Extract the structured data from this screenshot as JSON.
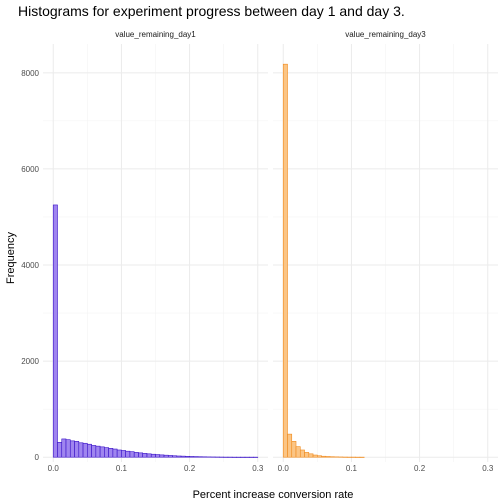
{
  "chart_data": {
    "type": "bar",
    "title": "Histograms for experiment progress between day 1 and day 3.",
    "xlabel": "Percent increase conversion rate",
    "ylabel": "Frequency",
    "xlim": [
      -0.015,
      0.315
    ],
    "ylim": [
      -100,
      8600
    ],
    "x_ticks": [
      0.0,
      0.1,
      0.2,
      0.3
    ],
    "x_tick_labels": [
      "0.0",
      "0.1",
      "0.2",
      "0.3"
    ],
    "y_ticks": [
      0,
      2000,
      4000,
      6000,
      8000
    ],
    "y_tick_labels": [
      "0",
      "2000",
      "4000",
      "6000",
      "8000"
    ],
    "bin_width": 0.00625,
    "grid": true,
    "panels": [
      {
        "name": "value_remaining_day1",
        "fill": "#9f85ef",
        "stroke": "#3a12c8",
        "bin_start": 0.0,
        "values": [
          5250,
          310,
          380,
          365,
          340,
          330,
          300,
          290,
          270,
          245,
          230,
          215,
          200,
          185,
          170,
          150,
          140,
          125,
          115,
          100,
          90,
          80,
          70,
          62,
          55,
          48,
          42,
          36,
          30,
          25,
          22,
          18,
          15,
          12,
          10,
          8,
          6,
          5,
          4,
          3,
          2,
          2,
          1,
          1,
          1,
          1,
          1,
          1
        ]
      },
      {
        "name": "value_remaining_day3",
        "fill": "#fbc585",
        "stroke": "#f08a1c",
        "bin_start": 0.0,
        "values": [
          8180,
          480,
          330,
          220,
          150,
          100,
          70,
          45,
          30,
          20,
          14,
          10,
          7,
          5,
          3,
          2,
          2,
          1,
          1
        ]
      }
    ]
  }
}
